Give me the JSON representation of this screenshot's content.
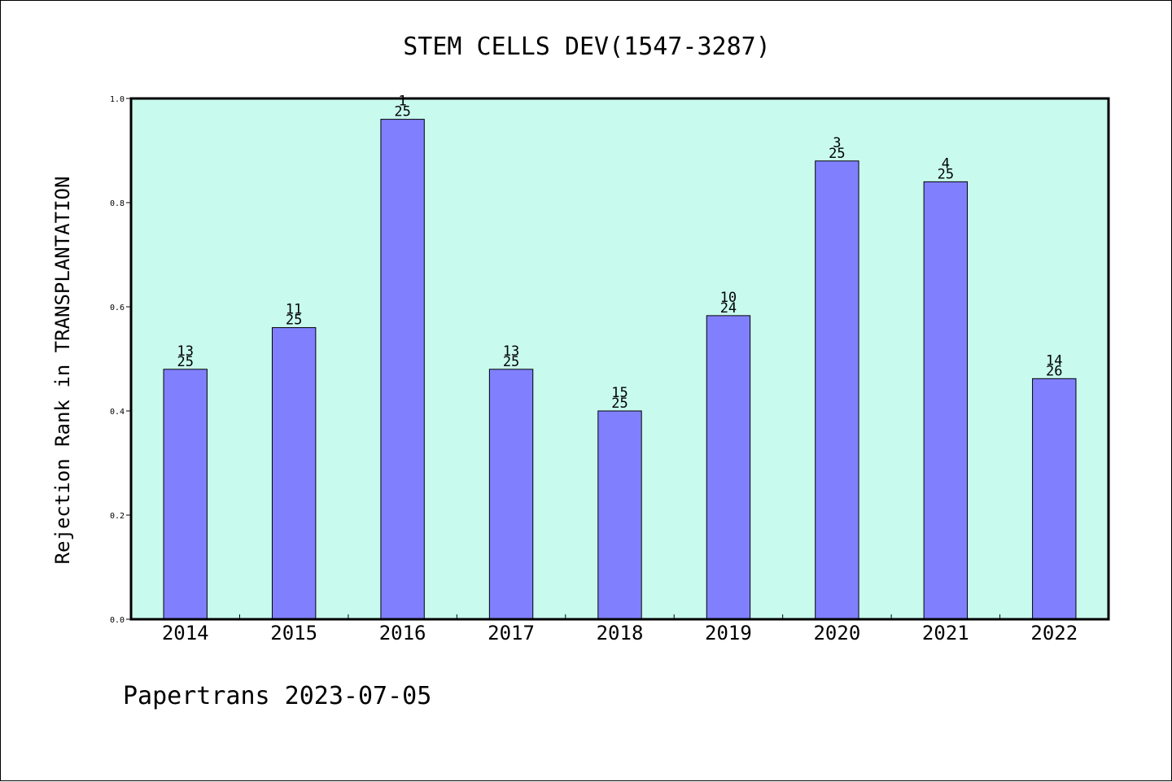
{
  "chart_data": {
    "type": "bar",
    "title": "STEM CELLS DEV(1547-3287)",
    "xlabel": "",
    "ylabel": "Rejection Rank in TRANSPLANTATION",
    "footer": "Papertrans 2023-07-05",
    "ylim": [
      0,
      1.0
    ],
    "yticks": [
      "0.0",
      "0.2",
      "0.4",
      "0.6",
      "0.8",
      "1.0"
    ],
    "categories": [
      "2014",
      "2015",
      "2016",
      "2017",
      "2018",
      "2019",
      "2020",
      "2021",
      "2022"
    ],
    "values": [
      0.48,
      0.56,
      0.96,
      0.48,
      0.4,
      0.583,
      0.88,
      0.84,
      0.462
    ],
    "labels_top": [
      "13",
      "11",
      "1",
      "13",
      "15",
      "10",
      "3",
      "4",
      "14"
    ],
    "labels_bottom": [
      "25",
      "25",
      "25",
      "25",
      "25",
      "24",
      "25",
      "25",
      "26"
    ],
    "grid": false,
    "colors": {
      "plot_background": "#c8faee",
      "bar_fill": "#8080ff",
      "bar_stroke": "#000000"
    }
  }
}
